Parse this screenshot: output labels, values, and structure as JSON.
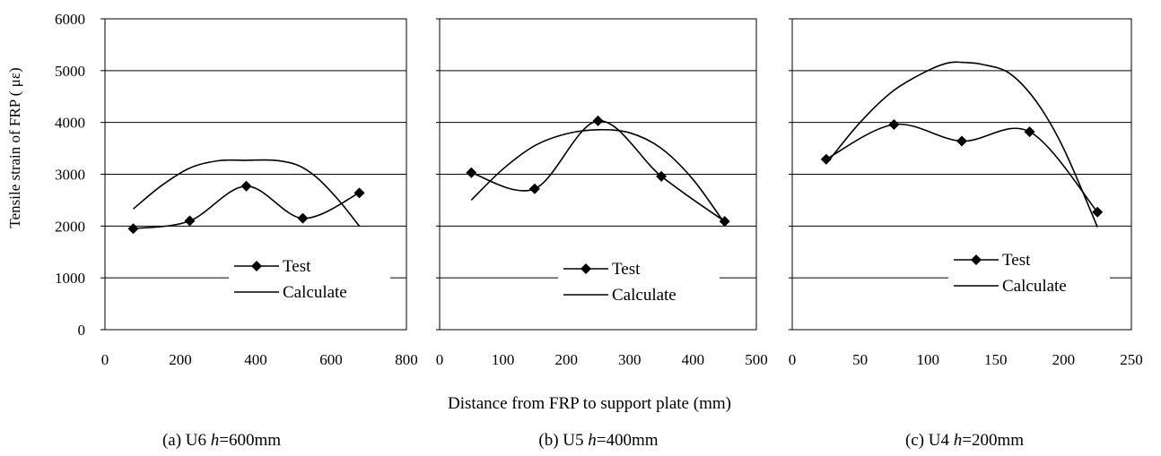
{
  "figure": {
    "shared_ylabel": "Tensile strain of FRP ( με)",
    "shared_xlabel": "Distance from FRP to support plate (mm)"
  },
  "chart_data": [
    {
      "type": "line",
      "caption": "(a) U6  h=600mm",
      "caption_prefix": "(a) U6",
      "caption_var": "h",
      "caption_value": "=600mm",
      "xlim": [
        0,
        800
      ],
      "ylim": [
        0,
        6000
      ],
      "xticks": [
        "0",
        "200",
        "400",
        "600",
        "800"
      ],
      "yticks": [
        "0",
        "1000",
        "2000",
        "3000",
        "4000",
        "5000",
        "6000"
      ],
      "grid": "horizontal",
      "legend": "lower-right",
      "series": [
        {
          "name": "Test",
          "marker": "diamond",
          "x": [
            75,
            225,
            375,
            525,
            675
          ],
          "y": [
            1950,
            2100,
            2770,
            2150,
            2640
          ]
        },
        {
          "name": "Calculate",
          "marker": "none",
          "x": [
            75,
            150,
            225,
            300,
            375,
            450,
            510,
            560,
            620,
            675
          ],
          "y": [
            2330,
            2780,
            3120,
            3260,
            3270,
            3270,
            3180,
            2950,
            2500,
            2000
          ]
        }
      ]
    },
    {
      "type": "line",
      "caption": "(b) U5  h=400mm",
      "caption_prefix": "(b) U5",
      "caption_var": "h",
      "caption_value": "=400mm",
      "xlim": [
        0,
        500
      ],
      "ylim": [
        0,
        6000
      ],
      "xticks": [
        "0",
        "100",
        "200",
        "300",
        "400",
        "500"
      ],
      "yticks": [
        "0",
        "1000",
        "2000",
        "3000",
        "4000",
        "5000",
        "6000"
      ],
      "grid": "horizontal",
      "legend": "lower-right",
      "series": [
        {
          "name": "Test",
          "marker": "diamond",
          "x": [
            50,
            150,
            250,
            350,
            450
          ],
          "y": [
            3030,
            2720,
            4030,
            2960,
            2090
          ]
        },
        {
          "name": "Calculate",
          "marker": "none",
          "x": [
            50,
            100,
            150,
            200,
            250,
            300,
            350,
            400,
            450
          ],
          "y": [
            2500,
            3100,
            3550,
            3780,
            3860,
            3800,
            3500,
            2900,
            2050
          ]
        }
      ]
    },
    {
      "type": "line",
      "caption": "(c) U4  h=200mm",
      "caption_prefix": "(c) U4",
      "caption_var": "h",
      "caption_value": "=200mm",
      "xlim": [
        0,
        250
      ],
      "ylim": [
        0,
        6000
      ],
      "xticks": [
        "0",
        "50",
        "100",
        "150",
        "200",
        "250"
      ],
      "yticks": [
        "0",
        "1000",
        "2000",
        "3000",
        "4000",
        "5000",
        "6000"
      ],
      "grid": "horizontal",
      "legend": "lower-right",
      "series": [
        {
          "name": "Test",
          "marker": "diamond",
          "x": [
            25,
            75,
            125,
            175,
            225
          ],
          "y": [
            3290,
            3960,
            3640,
            3820,
            2270
          ]
        },
        {
          "name": "Calculate",
          "marker": "none",
          "x": [
            25,
            50,
            75,
            100,
            115,
            125,
            140,
            160,
            180,
            200,
            225
          ],
          "y": [
            3200,
            4000,
            4620,
            5000,
            5150,
            5160,
            5120,
            4950,
            4400,
            3500,
            1980
          ]
        }
      ]
    }
  ]
}
